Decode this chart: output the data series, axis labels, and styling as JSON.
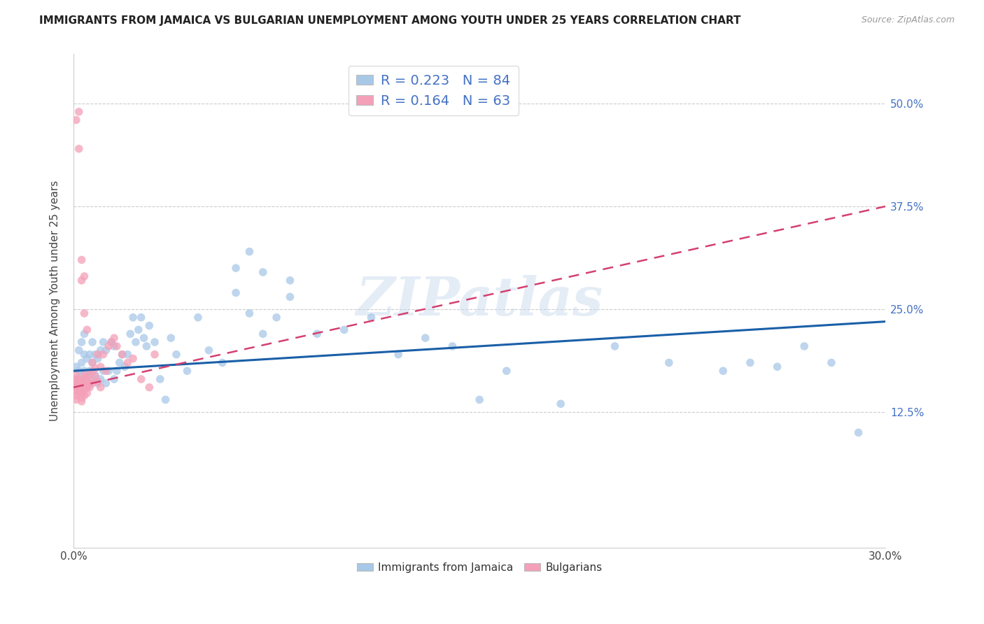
{
  "title": "IMMIGRANTS FROM JAMAICA VS BULGARIAN UNEMPLOYMENT AMONG YOUTH UNDER 25 YEARS CORRELATION CHART",
  "source": "Source: ZipAtlas.com",
  "ylabel": "Unemployment Among Youth under 25 years",
  "xlim": [
    0.0,
    0.3
  ],
  "ylim": [
    -0.04,
    0.56
  ],
  "xtick_labels": [
    "0.0%",
    "30.0%"
  ],
  "xtick_positions": [
    0.0,
    0.3
  ],
  "ytick_labels": [
    "12.5%",
    "25.0%",
    "37.5%",
    "50.0%"
  ],
  "ytick_positions": [
    0.125,
    0.25,
    0.375,
    0.5
  ],
  "legend_labels": [
    "Immigrants from Jamaica",
    "Bulgarians"
  ],
  "blue_color": "#a8c8e8",
  "pink_color": "#f4a0b8",
  "blue_line_color": "#1a5fa8",
  "pink_line_color": "#d44070",
  "R_blue": 0.223,
  "N_blue": 84,
  "R_pink": 0.164,
  "N_pink": 63,
  "watermark": "ZIPatlas",
  "blue_trend_x0": 0.0,
  "blue_trend_y0": 0.175,
  "blue_trend_x1": 0.3,
  "blue_trend_y1": 0.235,
  "pink_trend_x0": 0.0,
  "pink_trend_y0": 0.155,
  "pink_trend_x1": 0.3,
  "pink_trend_y1": 0.375,
  "blue_scatter_x": [
    0.001,
    0.001,
    0.002,
    0.002,
    0.002,
    0.003,
    0.003,
    0.003,
    0.003,
    0.004,
    0.004,
    0.004,
    0.004,
    0.005,
    0.005,
    0.005,
    0.006,
    0.006,
    0.006,
    0.007,
    0.007,
    0.007,
    0.008,
    0.008,
    0.009,
    0.009,
    0.01,
    0.01,
    0.011,
    0.011,
    0.012,
    0.012,
    0.013,
    0.014,
    0.015,
    0.015,
    0.016,
    0.017,
    0.018,
    0.019,
    0.02,
    0.021,
    0.022,
    0.023,
    0.024,
    0.025,
    0.026,
    0.027,
    0.028,
    0.03,
    0.032,
    0.034,
    0.036,
    0.038,
    0.042,
    0.046,
    0.05,
    0.055,
    0.06,
    0.065,
    0.07,
    0.075,
    0.08,
    0.09,
    0.1,
    0.11,
    0.12,
    0.13,
    0.14,
    0.15,
    0.16,
    0.18,
    0.2,
    0.22,
    0.24,
    0.25,
    0.26,
    0.27,
    0.28,
    0.29,
    0.06,
    0.065,
    0.07,
    0.08
  ],
  "blue_scatter_y": [
    0.165,
    0.18,
    0.16,
    0.175,
    0.2,
    0.155,
    0.17,
    0.185,
    0.21,
    0.16,
    0.175,
    0.195,
    0.22,
    0.155,
    0.17,
    0.19,
    0.16,
    0.175,
    0.195,
    0.165,
    0.185,
    0.21,
    0.17,
    0.195,
    0.16,
    0.19,
    0.165,
    0.2,
    0.175,
    0.21,
    0.16,
    0.2,
    0.175,
    0.21,
    0.165,
    0.205,
    0.175,
    0.185,
    0.195,
    0.18,
    0.195,
    0.22,
    0.24,
    0.21,
    0.225,
    0.24,
    0.215,
    0.205,
    0.23,
    0.21,
    0.165,
    0.14,
    0.215,
    0.195,
    0.175,
    0.24,
    0.2,
    0.185,
    0.27,
    0.245,
    0.22,
    0.24,
    0.265,
    0.22,
    0.225,
    0.24,
    0.195,
    0.215,
    0.205,
    0.14,
    0.175,
    0.135,
    0.205,
    0.185,
    0.175,
    0.185,
    0.18,
    0.205,
    0.185,
    0.1,
    0.3,
    0.32,
    0.295,
    0.285
  ],
  "pink_scatter_x": [
    0.001,
    0.001,
    0.001,
    0.001,
    0.001,
    0.001,
    0.001,
    0.001,
    0.002,
    0.002,
    0.002,
    0.002,
    0.002,
    0.002,
    0.003,
    0.003,
    0.003,
    0.003,
    0.003,
    0.003,
    0.003,
    0.004,
    0.004,
    0.004,
    0.004,
    0.004,
    0.004,
    0.005,
    0.005,
    0.005,
    0.005,
    0.006,
    0.006,
    0.006,
    0.007,
    0.007,
    0.007,
    0.008,
    0.008,
    0.009,
    0.009,
    0.01,
    0.01,
    0.011,
    0.012,
    0.013,
    0.014,
    0.015,
    0.016,
    0.018,
    0.02,
    0.022,
    0.025,
    0.028,
    0.03,
    0.003,
    0.003,
    0.004,
    0.004,
    0.005,
    0.002,
    0.002,
    0.001
  ],
  "pink_scatter_y": [
    0.155,
    0.16,
    0.165,
    0.17,
    0.155,
    0.15,
    0.145,
    0.14,
    0.15,
    0.155,
    0.16,
    0.165,
    0.155,
    0.148,
    0.152,
    0.158,
    0.162,
    0.155,
    0.148,
    0.142,
    0.138,
    0.155,
    0.16,
    0.152,
    0.145,
    0.165,
    0.17,
    0.155,
    0.16,
    0.168,
    0.148,
    0.16,
    0.155,
    0.17,
    0.16,
    0.175,
    0.185,
    0.168,
    0.178,
    0.162,
    0.195,
    0.155,
    0.18,
    0.195,
    0.175,
    0.205,
    0.21,
    0.215,
    0.205,
    0.195,
    0.185,
    0.19,
    0.165,
    0.155,
    0.195,
    0.285,
    0.31,
    0.29,
    0.245,
    0.225,
    0.445,
    0.49,
    0.48
  ]
}
